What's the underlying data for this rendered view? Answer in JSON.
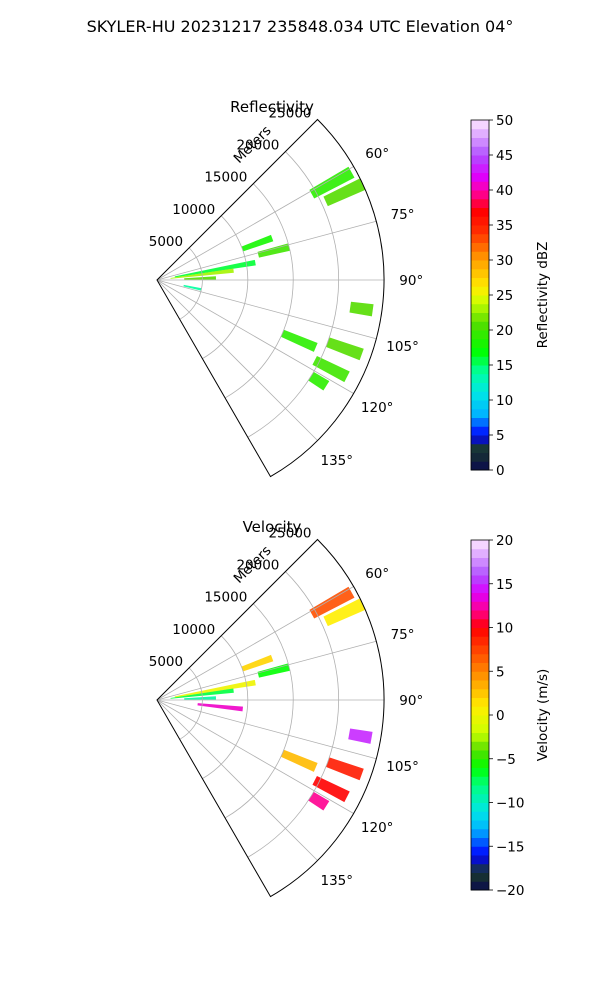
{
  "suptitle": "SKYLER-HU  20231217  235848.034 UTC Elevation 04°",
  "chart_data": [
    {
      "type": "polar-sector-radar",
      "title": "Reflectivity",
      "range_label": "Meters",
      "theta_range_deg": [
        45,
        150
      ],
      "r_range": [
        0,
        25000
      ],
      "r_ticks": [
        5000,
        10000,
        15000,
        20000,
        25000
      ],
      "r_tick_labels": [
        "5000",
        "10000",
        "15000",
        "20000",
        "25000"
      ],
      "theta_ticks": [
        60,
        75,
        90,
        105,
        120,
        135
      ],
      "theta_tick_labels": [
        "60°",
        "75°",
        "90°",
        "105°",
        "120°",
        "135°"
      ],
      "grid": true,
      "colorbar": {
        "label": "Reflectivity dBZ",
        "min": 0,
        "max": 50,
        "ticks": [
          0,
          5,
          10,
          15,
          20,
          25,
          30,
          35,
          40,
          45,
          50
        ],
        "tick_labels": [
          "0",
          "5",
          "10",
          "15",
          "20",
          "25",
          "30",
          "35",
          "40",
          "45",
          "50"
        ]
      },
      "echoes": [
        {
          "az": 61,
          "r": [
            19500,
            24500
          ],
          "value": 19
        },
        {
          "az": 65,
          "r": [
            20500,
            25000
          ],
          "value": 21
        },
        {
          "az": 70,
          "r": [
            10000,
            13500
          ],
          "value": 18
        },
        {
          "az": 76,
          "r": [
            11500,
            15000
          ],
          "value": 20
        },
        {
          "az": 80,
          "r": [
            2000,
            11000
          ],
          "value": 16
        },
        {
          "az": 83,
          "r": [
            1500,
            8500
          ],
          "value": 23
        },
        {
          "az": 88,
          "r": [
            3000,
            6500
          ],
          "value": 21
        },
        {
          "az": 98,
          "r": [
            21500,
            24000
          ],
          "value": 21
        },
        {
          "az": 102,
          "r": [
            3000,
            5000
          ],
          "value": 14
        },
        {
          "az": 110,
          "r": [
            20000,
            24000
          ],
          "value": 21
        },
        {
          "az": 117,
          "r": [
            19500,
            23500
          ],
          "value": 20
        },
        {
          "az": 113,
          "r": [
            15000,
            19000
          ],
          "value": 19
        },
        {
          "az": 122,
          "r": [
            20000,
            22000
          ],
          "value": 19
        }
      ]
    },
    {
      "type": "polar-sector-radar",
      "title": "Velocity",
      "range_label": "Meters",
      "theta_range_deg": [
        45,
        150
      ],
      "r_range": [
        0,
        25000
      ],
      "r_ticks": [
        5000,
        10000,
        15000,
        20000,
        25000
      ],
      "r_tick_labels": [
        "5000",
        "10000",
        "15000",
        "20000",
        "25000"
      ],
      "theta_ticks": [
        60,
        75,
        90,
        105,
        120,
        135
      ],
      "theta_tick_labels": [
        "60°",
        "75°",
        "90°",
        "105°",
        "120°",
        "135°"
      ],
      "grid": true,
      "colorbar": {
        "label": "Velocity (m/s)",
        "min": -20,
        "max": 20,
        "ticks": [
          -20,
          -15,
          -10,
          -5,
          0,
          5,
          10,
          15,
          20
        ],
        "tick_labels": [
          "−20",
          "−15",
          "−10",
          "−5",
          "0",
          "5",
          "10",
          "15",
          "20"
        ]
      },
      "echoes": [
        {
          "az": 61,
          "r": [
            19500,
            24500
          ],
          "value": 7
        },
        {
          "az": 65,
          "r": [
            20500,
            25000
          ],
          "value": 1
        },
        {
          "az": 70,
          "r": [
            10000,
            13500
          ],
          "value": 2
        },
        {
          "az": 76,
          "r": [
            11500,
            15000
          ],
          "value": -6
        },
        {
          "az": 80,
          "r": [
            2000,
            11000
          ],
          "value": 0
        },
        {
          "az": 83,
          "r": [
            1500,
            8500
          ],
          "value": -7
        },
        {
          "az": 88,
          "r": [
            3000,
            6500
          ],
          "value": -9
        },
        {
          "az": 96,
          "r": [
            4500,
            9500
          ],
          "value": 13
        },
        {
          "az": 100,
          "r": [
            21500,
            24000
          ],
          "value": 15
        },
        {
          "az": 110,
          "r": [
            20000,
            24000
          ],
          "value": 9
        },
        {
          "az": 117,
          "r": [
            19500,
            23500
          ],
          "value": 10
        },
        {
          "az": 113,
          "r": [
            15000,
            19000
          ],
          "value": 3
        },
        {
          "az": 122,
          "r": [
            20000,
            22000
          ],
          "value": 12
        }
      ]
    }
  ]
}
